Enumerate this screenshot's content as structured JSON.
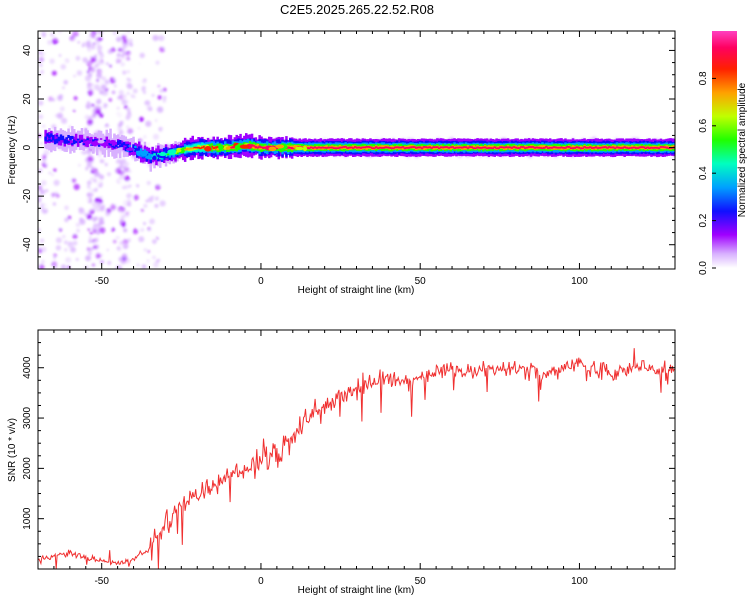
{
  "title": "C2E5.2025.265.22.52.R08",
  "chart_data": [
    {
      "type": "heatmap",
      "title": "C2E5.2025.265.22.52.R08",
      "xlabel": "Height of straight line (km)",
      "ylabel": "Frequency (Hz)",
      "xlim": [
        -70,
        130
      ],
      "ylim": [
        -50,
        48
      ],
      "x_ticks": [
        -50,
        0,
        50,
        100
      ],
      "y_ticks": [
        -40,
        -20,
        0,
        20,
        40
      ],
      "colorbar": {
        "label": "Normalized spectral amplitude",
        "range": [
          0.0,
          1.0
        ],
        "ticks": [
          0.0,
          0.2,
          0.4,
          0.6,
          0.8
        ],
        "colors": [
          "#ffffff",
          "#b000ff",
          "#2000ff",
          "#00c0ff",
          "#00ff40",
          "#c0ff00",
          "#ff8000",
          "#ff0000",
          "#ff40c0"
        ]
      },
      "ridge": {
        "description_points_x": [
          -68,
          -60,
          -50,
          -45,
          -40,
          -35,
          -30,
          -25,
          -20,
          -10,
          -5,
          0,
          5,
          10,
          20,
          50,
          100,
          130
        ],
        "freq_hz": [
          4,
          3,
          2,
          1,
          -1,
          -4,
          -3,
          -1,
          0,
          0,
          1,
          0,
          0,
          0,
          0,
          0,
          0,
          0
        ],
        "peak_amplitude": [
          0.3,
          0.25,
          0.2,
          0.25,
          0.35,
          0.4,
          0.5,
          0.7,
          0.85,
          0.9,
          0.9,
          0.95,
          0.95,
          0.9,
          0.9,
          0.9,
          0.9,
          0.9
        ]
      }
    },
    {
      "type": "line",
      "title": "",
      "xlabel": "Height of straight line (km)",
      "ylabel": "SNR (10 * v/v)",
      "xlim": [
        -70,
        130
      ],
      "ylim": [
        0,
        4750
      ],
      "x_ticks": [
        -50,
        0,
        50,
        100
      ],
      "y_ticks": [
        1000,
        2000,
        3000,
        4000
      ],
      "series": [
        {
          "name": "SNR",
          "color": "#f03030",
          "x": [
            -70,
            -65,
            -60,
            -55,
            -50,
            -45,
            -40,
            -35,
            -30,
            -25,
            -20,
            -15,
            -10,
            -5,
            0,
            5,
            10,
            15,
            20,
            25,
            30,
            35,
            40,
            45,
            50,
            55,
            60,
            65,
            70,
            75,
            80,
            85,
            90,
            95,
            100,
            105,
            110,
            115,
            120,
            125,
            130
          ],
          "values": [
            150,
            250,
            330,
            200,
            150,
            120,
            180,
            400,
            900,
            1300,
            1450,
            1650,
            1850,
            2000,
            2150,
            2300,
            2650,
            2950,
            3250,
            3450,
            3550,
            3680,
            3800,
            3700,
            3780,
            3900,
            3950,
            3900,
            4000,
            3950,
            4000,
            3950,
            3900,
            4000,
            4050,
            3950,
            3900,
            4000,
            4000,
            3900,
            4000
          ]
        }
      ]
    }
  ]
}
